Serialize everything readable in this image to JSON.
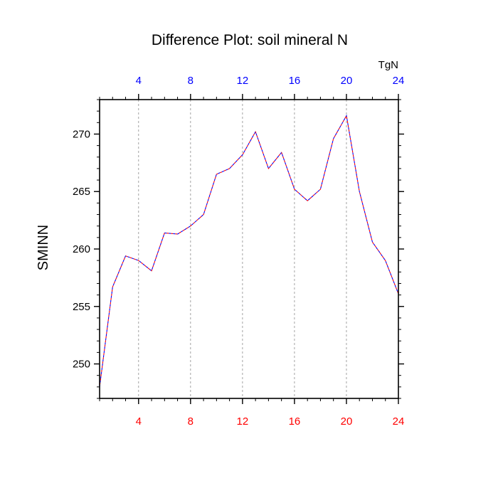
{
  "chart_data": {
    "type": "line",
    "title": "Difference Plot: soil mineral N",
    "ylabel": "SMINN",
    "top_axis_units": "TgN",
    "xlim": [
      1,
      24
    ],
    "ylim": [
      247,
      273
    ],
    "x_ticks": [
      4,
      8,
      12,
      16,
      20,
      24
    ],
    "x_tick_labels": [
      "4",
      "8",
      "12",
      "16",
      "20",
      "24"
    ],
    "y_ticks": [
      250,
      255,
      260,
      265,
      270
    ],
    "y_tick_labels": [
      "250",
      "255",
      "260",
      "265",
      "270"
    ],
    "y_minor_step": 1,
    "x_minor_step": 1,
    "vertical_gridlines": "dashed at major x ticks",
    "series": [
      {
        "line_style": "dashed",
        "colors": [
          "#0000ff",
          "#ff0000"
        ],
        "x": [
          1,
          2,
          3,
          4,
          5,
          6,
          7,
          8,
          9,
          10,
          11,
          12,
          13,
          14,
          15,
          16,
          17,
          18,
          19,
          20,
          21,
          22,
          23,
          24
        ],
        "values": [
          248.0,
          256.7,
          259.4,
          259.0,
          258.1,
          261.4,
          261.3,
          262.0,
          263.0,
          266.5,
          267.0,
          268.2,
          270.2,
          267.0,
          268.4,
          265.2,
          264.2,
          265.2,
          269.6,
          271.6,
          265.0,
          260.6,
          259.0,
          256.1
        ]
      }
    ],
    "colors": {
      "bottom_tick_labels": "#ff0000",
      "top_tick_labels": "#0000ff",
      "axes": "#000000",
      "grid": "#999999"
    }
  }
}
